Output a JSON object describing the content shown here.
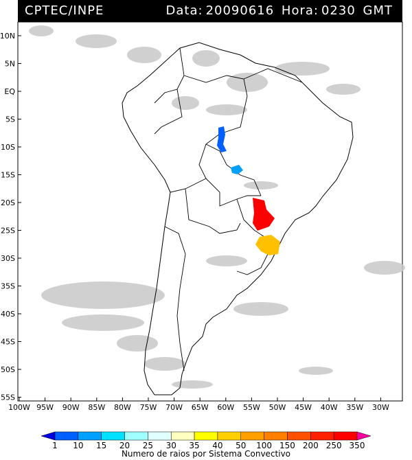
{
  "header": {
    "agency": "CPTEC/INPE",
    "date_label": "Data:",
    "date_value": "20090616",
    "hour_label": "Hora:",
    "hour_value": "0230",
    "tz": "GMT"
  },
  "map": {
    "lat_labels": [
      "10N",
      "5N",
      "EQ",
      "5S",
      "10S",
      "15S",
      "20S",
      "25S",
      "30S",
      "35S",
      "40S",
      "45S",
      "50S",
      "55S"
    ],
    "lon_labels": [
      "100W",
      "95W",
      "90W",
      "85W",
      "80W",
      "75W",
      "70W",
      "65W",
      "60W",
      "55W",
      "50W",
      "45W",
      "40W",
      "35W",
      "30W"
    ],
    "cloud_color": "#c8c8c8",
    "land_border_color": "#000000"
  },
  "colorbar": {
    "ticks": [
      "1",
      "10",
      "15",
      "20",
      "25",
      "30",
      "35",
      "40",
      "50",
      "100",
      "150",
      "200",
      "250",
      "350"
    ],
    "colors": [
      "#0000e0",
      "#0060ff",
      "#00a0ff",
      "#00e0ff",
      "#a0ffff",
      "#e0ffff",
      "#ffffc0",
      "#ffff00",
      "#ffd000",
      "#ffa000",
      "#ff8000",
      "#ff5000",
      "#ff2000",
      "#ff0000",
      "#ff00a0"
    ],
    "title": "Numero de raios por Sistema Convectivo"
  }
}
